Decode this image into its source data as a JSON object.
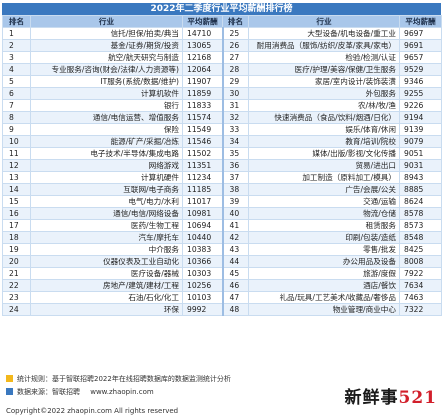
{
  "title": "2022年二季度行业平均薪酬排行榜",
  "headers": [
    "排名",
    "行业",
    "平均薪酬",
    "排名",
    "行业",
    "平均薪酬"
  ],
  "rows": [
    [
      "1",
      "信托/担保/拍卖/典当",
      "14710",
      "25",
      "大型设备/机电设备/重工业",
      "9697"
    ],
    [
      "2",
      "基金/证券/期货/投资",
      "13065",
      "26",
      "耐用消费品（服饰/纺织/皮革/家具/家电）",
      "9691"
    ],
    [
      "3",
      "航空/航天研究与制造",
      "12168",
      "27",
      "检验/检测/认证",
      "9657"
    ],
    [
      "4",
      "专业服务/咨询(财会/法律/人力资源等)",
      "12064",
      "28",
      "医疗/护理/美容/保健/卫生服务",
      "9529"
    ],
    [
      "5",
      "IT服务(系统/数据/维护)",
      "11907",
      "29",
      "家居/室内设计/装饰装潢",
      "9346"
    ],
    [
      "6",
      "计算机软件",
      "11859",
      "30",
      "外包服务",
      "9255"
    ],
    [
      "7",
      "银行",
      "11833",
      "31",
      "农/林/牧/渔",
      "9226"
    ],
    [
      "8",
      "通信/电信运营、增值服务",
      "11574",
      "32",
      "快速消费品（食品/饮料/烟酒/日化）",
      "9194"
    ],
    [
      "9",
      "保险",
      "11549",
      "33",
      "娱乐/体育/休闲",
      "9139"
    ],
    [
      "10",
      "能源/矿产/采掘/冶炼",
      "11546",
      "34",
      "教育/培训/院校",
      "9079"
    ],
    [
      "11",
      "电子技术/半导体/集成电路",
      "11502",
      "35",
      "媒体/出版/影视/文化传播",
      "9051"
    ],
    [
      "12",
      "网络游戏",
      "11351",
      "36",
      "贸易/进出口",
      "9031"
    ],
    [
      "13",
      "计算机硬件",
      "11234",
      "37",
      "加工制造（原料加工/模具）",
      "8943"
    ],
    [
      "14",
      "互联网/电子商务",
      "11185",
      "38",
      "广告/会展/公关",
      "8885"
    ],
    [
      "15",
      "电气/电力/水利",
      "11017",
      "39",
      "交通/运输",
      "8624"
    ],
    [
      "16",
      "通信/电信/网络设备",
      "10981",
      "40",
      "物流/仓储",
      "8578"
    ],
    [
      "17",
      "医药/生物工程",
      "10694",
      "41",
      "租赁服务",
      "8573"
    ],
    [
      "18",
      "汽车/摩托车",
      "10440",
      "42",
      "印刷/包装/造纸",
      "8548"
    ],
    [
      "19",
      "中介服务",
      "10383",
      "43",
      "零售/批发",
      "8425"
    ],
    [
      "20",
      "仪器仪表及工业自动化",
      "10366",
      "44",
      "办公用品及设备",
      "8008"
    ],
    [
      "21",
      "医疗设备/器械",
      "10303",
      "45",
      "旅游/度假",
      "7922"
    ],
    [
      "22",
      "房地产/建筑/建材/工程",
      "10256",
      "46",
      "酒店/餐饮",
      "7634"
    ],
    [
      "23",
      "石油/石化/化工",
      "10103",
      "47",
      "礼品/玩具/工艺美术/收藏品/奢侈品",
      "7463"
    ],
    [
      "24",
      "环保",
      "9992",
      "48",
      "物业管理/商业中心",
      "7322"
    ]
  ],
  "footer": {
    "stat_label": "统计规则：基于智联招聘2022年在线招聘数据库的数据监测统计分析",
    "source_label": "数据来源：智联招聘",
    "url": "www.zhaopin.com",
    "copyright": "Copyright©2022 zhaopin.com All rights reserved",
    "stat_color": "#f3b81c",
    "source_color": "#3a78bf"
  },
  "watermark": {
    "text": "新鲜事",
    "number": "521"
  }
}
